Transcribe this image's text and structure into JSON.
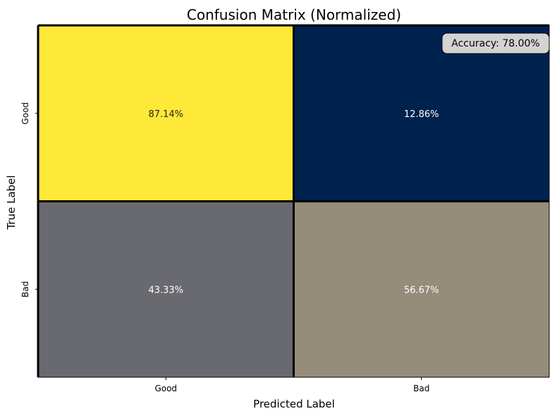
{
  "chart_data": {
    "type": "heatmap",
    "title": "Confusion Matrix (Normalized)",
    "xlabel": "Predicted Label",
    "ylabel": "True Label",
    "x_categories": [
      "Good",
      "Bad"
    ],
    "y_categories": [
      "Good",
      "Bad"
    ],
    "values": [
      [
        87.14,
        12.86
      ],
      [
        43.33,
        56.67
      ]
    ],
    "cell_labels": [
      [
        "87.14%",
        "12.86%"
      ],
      [
        "43.33%",
        "56.67%"
      ]
    ],
    "colormap": "cividis",
    "value_range": [
      12.86,
      87.14
    ],
    "cell_colors": [
      [
        "#fee838",
        "#00224e"
      ],
      [
        "#696970",
        "#958c7a"
      ]
    ],
    "cell_text_colors": [
      [
        "#262626",
        "#ffffff"
      ],
      [
        "#ffffff",
        "#ffffff"
      ]
    ],
    "grid": false,
    "annotation": {
      "text": "Accuracy: 78.00%",
      "position": "top-right",
      "background": "#d3d3d3"
    }
  }
}
